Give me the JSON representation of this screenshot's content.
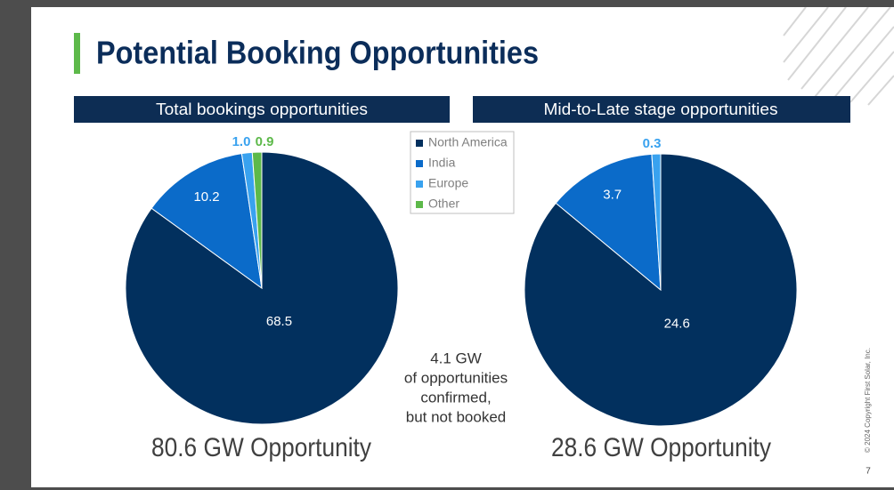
{
  "slide": {
    "title": "Potential Booking Opportunities",
    "note": [
      "4.1 GW",
      "of opportunities",
      "confirmed,",
      "but not booked"
    ],
    "copyright": "© 2024 Copyright First Solar, Inc.",
    "page": "7"
  },
  "chart_data": [
    {
      "type": "pie",
      "title": "Total bookings opportunities",
      "categories": [
        "North America",
        "India",
        "Europe",
        "Other"
      ],
      "values": [
        68.5,
        10.2,
        1.0,
        0.9
      ],
      "value_labels": [
        "68.5",
        "10.2",
        "1.0",
        "0.9"
      ],
      "colors": [
        "#02305e",
        "#0b6bc9",
        "#39a2ef",
        "#5db94a"
      ],
      "footer": "80.6 GW Opportunity",
      "legend": "middle"
    },
    {
      "type": "pie",
      "title": "Mid-to-Late stage opportunities",
      "categories": [
        "North America",
        "India",
        "Europe"
      ],
      "values": [
        24.6,
        3.7,
        0.3
      ],
      "colors": [
        "#02305e",
        "#0b6bc9",
        "#39a2ef"
      ],
      "footer": "28.6 GW Opportunity"
    }
  ]
}
